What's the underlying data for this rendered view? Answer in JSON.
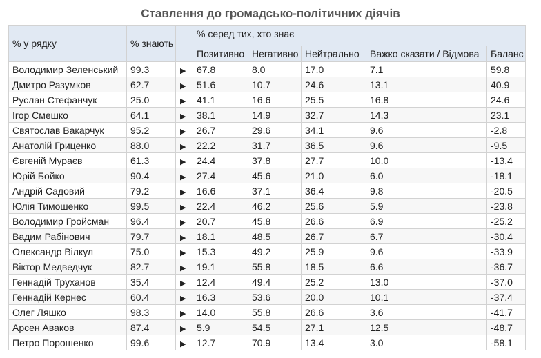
{
  "title": "Ставлення до громадсько-політичних діячів",
  "headers": {
    "col_row_pct": "% у рядку",
    "col_know": "% знають",
    "group_among_knowing": "% серед тих, хто знає",
    "sub": [
      "Позитивно",
      "Негативно",
      "Нейтрально",
      "Важко сказати / Відмова",
      "Баланс"
    ]
  },
  "arrow_symbol": "▶",
  "rows": [
    {
      "name": "Володимир Зеленський",
      "know": "99.3",
      "pos": "67.8",
      "neg": "8.0",
      "neu": "17.0",
      "hard": "7.1",
      "bal": "59.8"
    },
    {
      "name": "Дмитро Разумков",
      "know": "62.7",
      "pos": "51.6",
      "neg": "10.7",
      "neu": "24.6",
      "hard": "13.1",
      "bal": "40.9"
    },
    {
      "name": "Руслан Стефанчук",
      "know": "25.0",
      "pos": "41.1",
      "neg": "16.6",
      "neu": "25.5",
      "hard": "16.8",
      "bal": "24.6"
    },
    {
      "name": "Ігор Смешко",
      "know": "64.1",
      "pos": "38.1",
      "neg": "14.9",
      "neu": "32.7",
      "hard": "14.3",
      "bal": "23.1"
    },
    {
      "name": "Святослав Вакарчук",
      "know": "95.2",
      "pos": "26.7",
      "neg": "29.6",
      "neu": "34.1",
      "hard": "9.6",
      "bal": "-2.8"
    },
    {
      "name": "Анатолій Гриценко",
      "know": "88.0",
      "pos": "22.2",
      "neg": "31.7",
      "neu": "36.5",
      "hard": "9.6",
      "bal": "-9.5"
    },
    {
      "name": "Євгеній Мураєв",
      "know": "61.3",
      "pos": "24.4",
      "neg": "37.8",
      "neu": "27.7",
      "hard": "10.0",
      "bal": "-13.4"
    },
    {
      "name": "Юрій Бойко",
      "know": "90.4",
      "pos": "27.4",
      "neg": "45.6",
      "neu": "21.0",
      "hard": "6.0",
      "bal": "-18.1"
    },
    {
      "name": "Андрій Садовий",
      "know": "79.2",
      "pos": "16.6",
      "neg": "37.1",
      "neu": "36.4",
      "hard": "9.8",
      "bal": "-20.5"
    },
    {
      "name": "Юлія Тимошенко",
      "know": "99.5",
      "pos": "22.4",
      "neg": "46.2",
      "neu": "25.6",
      "hard": "5.9",
      "bal": "-23.8"
    },
    {
      "name": "Володимир Гройсман",
      "know": "96.4",
      "pos": "20.7",
      "neg": "45.8",
      "neu": "26.6",
      "hard": "6.9",
      "bal": "-25.2"
    },
    {
      "name": "Вадим Рабінович",
      "know": "79.7",
      "pos": "18.1",
      "neg": "48.5",
      "neu": "26.7",
      "hard": "6.7",
      "bal": "-30.4"
    },
    {
      "name": "Олександр Вілкул",
      "know": "75.0",
      "pos": "15.3",
      "neg": "49.2",
      "neu": "25.9",
      "hard": "9.6",
      "bal": "-33.9"
    },
    {
      "name": "Віктор Медведчук",
      "know": "82.7",
      "pos": "19.1",
      "neg": "55.8",
      "neu": "18.5",
      "hard": "6.6",
      "bal": "-36.7"
    },
    {
      "name": "Геннадій Труханов",
      "know": "35.4",
      "pos": "12.4",
      "neg": "49.4",
      "neu": "25.2",
      "hard": "13.0",
      "bal": "-37.0"
    },
    {
      "name": "Геннадій Кернес",
      "know": "60.4",
      "pos": "16.3",
      "neg": "53.6",
      "neu": "20.0",
      "hard": "10.1",
      "bal": "-37.4"
    },
    {
      "name": "Олег Ляшко",
      "know": "98.3",
      "pos": "14.0",
      "neg": "55.8",
      "neu": "26.6",
      "hard": "3.6",
      "bal": "-41.7"
    },
    {
      "name": "Арсен Аваков",
      "know": "87.4",
      "pos": "5.9",
      "neg": "54.5",
      "neu": "27.1",
      "hard": "12.5",
      "bal": "-48.7"
    },
    {
      "name": "Петро Порошенко",
      "know": "99.6",
      "pos": "12.7",
      "neg": "70.9",
      "neu": "13.4",
      "hard": "3.0",
      "bal": "-58.1"
    }
  ]
}
